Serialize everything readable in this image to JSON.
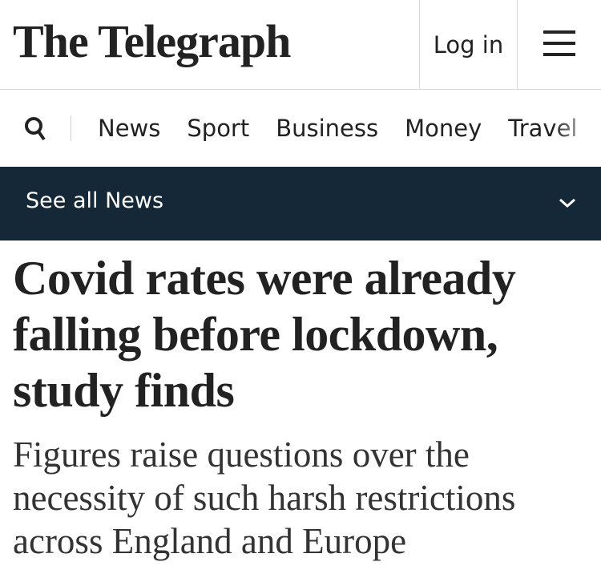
{
  "header": {
    "logo": "The Telegraph",
    "login": "Log in"
  },
  "nav": {
    "items": [
      "News",
      "Sport",
      "Business",
      "Money",
      "Travel"
    ]
  },
  "section_bar": {
    "label": "See all News"
  },
  "article": {
    "headline": "Covid rates were already falling before lockdown, study finds",
    "standfirst": "Figures raise questions over the necessity of such harsh restrictions across England and Europe"
  }
}
